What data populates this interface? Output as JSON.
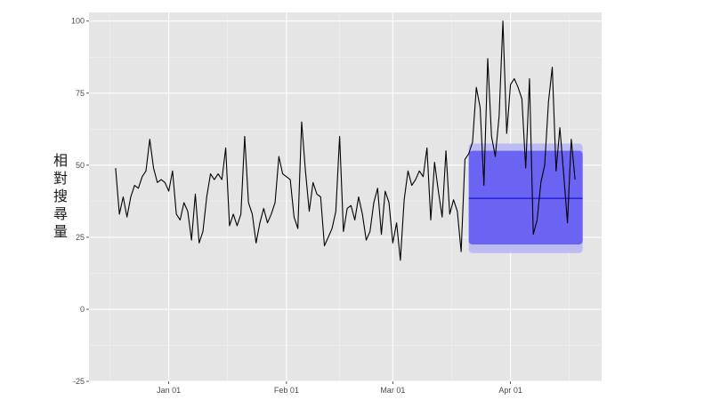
{
  "chart_data": {
    "type": "line",
    "title": "",
    "xlabel": "",
    "ylabel": "相對搜尋量",
    "ylim": [
      -25,
      103
    ],
    "xlim": [
      "2021-12-21",
      "2021-04-25"
    ],
    "grid": true,
    "x_ticks": [
      {
        "date": "2021-01-01",
        "label": "Jan 01"
      },
      {
        "date": "2021-02-01",
        "label": "Feb 01"
      },
      {
        "date": "2021-03-01",
        "label": "Mar 01"
      },
      {
        "date": "2021-04-01",
        "label": "Apr 01"
      }
    ],
    "y_ticks": [
      -25,
      0,
      25,
      50,
      75,
      100
    ],
    "series": [
      {
        "x_start": "2020-12-18",
        "x_step_days": 1,
        "values": [
          49,
          33,
          39,
          32,
          39,
          43,
          42,
          46,
          48,
          59,
          49,
          44,
          45,
          44,
          41,
          48,
          33,
          31,
          37,
          34,
          24,
          40,
          23,
          27,
          39,
          47,
          45,
          47,
          45,
          56,
          29,
          33,
          29,
          33,
          60,
          37,
          33,
          23,
          30,
          35,
          30,
          33,
          37,
          53,
          47,
          46,
          45,
          32,
          28,
          65,
          48,
          34,
          44,
          40,
          39,
          22,
          25,
          28,
          34,
          60,
          27,
          35,
          36,
          31,
          39,
          33,
          24,
          27,
          37,
          42,
          26,
          41,
          37,
          23,
          30,
          17,
          38,
          48,
          43,
          45,
          48,
          46,
          56,
          31,
          51,
          41,
          32,
          55,
          33,
          38,
          34,
          20,
          52,
          54,
          58,
          77,
          70,
          43,
          87,
          60,
          53,
          67,
          100,
          61,
          78,
          80,
          77,
          73,
          49,
          80,
          26,
          31,
          44,
          50,
          72,
          84,
          48,
          63,
          47,
          30,
          59,
          45
        ]
      }
    ],
    "forecast": {
      "start": "2021-03-21",
      "end": "2021-04-20",
      "mean": 38.5,
      "interval_80": [
        22.5,
        55
      ],
      "interval_95": [
        19.5,
        57.5
      ]
    },
    "colors": {
      "panel": "#e5e5e5",
      "grid_major": "#ffffff",
      "grid_minor": "#f2f2f2",
      "line": "#000000",
      "forecast_line": "#0000cc",
      "band_80": "#6b63f2",
      "band_95": "#bcbcf3"
    }
  }
}
